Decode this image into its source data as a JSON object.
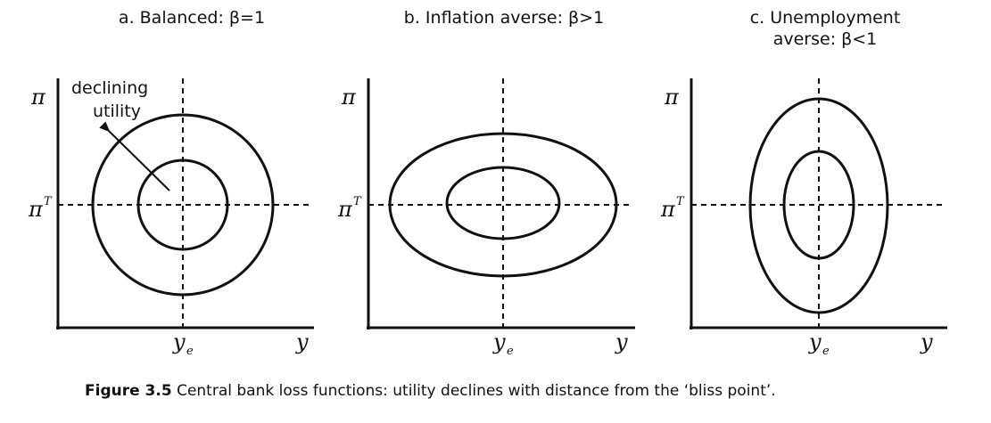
{
  "panels": [
    {
      "id": "a",
      "title": "a. Balanced: β=1",
      "y_axis_label": "π",
      "target_label": "π",
      "target_sup": "T",
      "x_axis_label": "y",
      "ye_label": "y",
      "ye_sub": "e",
      "annotation": [
        "declining",
        "utility"
      ],
      "curve_shape": "circle"
    },
    {
      "id": "b",
      "title": "b. Inflation averse: β>1",
      "y_axis_label": "π",
      "target_label": "π",
      "target_sup": "T",
      "x_axis_label": "y",
      "ye_label": "y",
      "ye_sub": "e",
      "curve_shape": "horizontal-ellipse"
    },
    {
      "id": "c",
      "title_lines": [
        "c. Unemployment",
        "averse: β<1"
      ],
      "y_axis_label": "π",
      "target_label": "π",
      "target_sup": "T",
      "x_axis_label": "y",
      "ye_label": "y",
      "ye_sub": "e",
      "curve_shape": "vertical-ellipse"
    }
  ],
  "caption": {
    "figure_number": "Figure 3.5",
    "text": "Central bank loss functions: utility declines with distance from the ‘bliss point’."
  }
}
